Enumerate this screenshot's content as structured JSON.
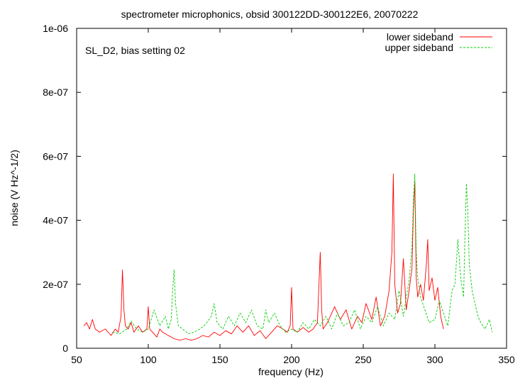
{
  "chart_data": {
    "type": "line",
    "title": "spectrometer microphonics, obsid 300122DD-300122E6, 20070222",
    "xlabel": "frequency (Hz)",
    "ylabel": "noise (V Hz^-1/2)",
    "annotation": "SL_D2, bias setting 02",
    "xlim": [
      50,
      350
    ],
    "ylim": [
      0,
      1e-06
    ],
    "x_ticks": [
      50,
      100,
      150,
      200,
      250,
      300,
      350
    ],
    "x_tick_labels": [
      "50",
      "100",
      "150",
      "200",
      "250",
      "300",
      "350"
    ],
    "y_ticks": [
      0,
      2e-07,
      4e-07,
      6e-07,
      8e-07,
      1e-06
    ],
    "y_tick_labels": [
      "0",
      "2e-07",
      "4e-07",
      "6e-07",
      "8e-07",
      "1e-06"
    ],
    "grid": false,
    "legend_position": "top-right",
    "series": [
      {
        "name": "lower sideband",
        "color": "#ff0000",
        "dash": "solid",
        "x": [
          55,
          57,
          59,
          61,
          63,
          66,
          70,
          74,
          77,
          79,
          81,
          82,
          83,
          84,
          86,
          88,
          90,
          93,
          96,
          99,
          100,
          101,
          103,
          106,
          108,
          110,
          114,
          118,
          122,
          126,
          130,
          134,
          138,
          142,
          146,
          150,
          154,
          158,
          162,
          166,
          170,
          174,
          178,
          182,
          186,
          190,
          194,
          197,
          199,
          200,
          201,
          204,
          208,
          212,
          215,
          218,
          220,
          221,
          222,
          225,
          230,
          234,
          238,
          242,
          246,
          249,
          252,
          256,
          259,
          262,
          265,
          268,
          270,
          271,
          272,
          274,
          276,
          278,
          280,
          282,
          284,
          285,
          286,
          287,
          288,
          290,
          292,
          294,
          295,
          296,
          298,
          300,
          302,
          304,
          306
        ],
        "y": [
          7e-08,
          8e-08,
          6e-08,
          9e-08,
          6e-08,
          5e-08,
          6e-08,
          4e-08,
          6e-08,
          5e-08,
          1e-07,
          2.45e-07,
          1.2e-07,
          7e-08,
          6e-08,
          8e-08,
          5e-08,
          7e-08,
          5e-08,
          6e-08,
          1.3e-07,
          6e-08,
          5e-08,
          3.5e-08,
          6e-08,
          5e-08,
          4e-08,
          3e-08,
          2.5e-08,
          3e-08,
          2.5e-08,
          3e-08,
          4e-08,
          3.5e-08,
          5e-08,
          4e-08,
          5.5e-08,
          4.5e-08,
          7e-08,
          5e-08,
          7e-08,
          4e-08,
          5.5e-08,
          3e-08,
          5e-08,
          7e-08,
          6e-08,
          5e-08,
          7e-08,
          1.9e-07,
          6e-08,
          5e-08,
          6.5e-08,
          5e-08,
          6e-08,
          8e-08,
          3e-07,
          1.2e-07,
          6e-08,
          8e-08,
          1.3e-07,
          9e-08,
          1.2e-07,
          6e-08,
          1e-07,
          8e-08,
          1.4e-07,
          9e-08,
          1.6e-07,
          7e-08,
          1e-07,
          1.8e-07,
          3e-07,
          5.45e-07,
          2e-07,
          1.1e-07,
          1.4e-07,
          2.8e-07,
          1.2e-07,
          1.8e-07,
          2.5e-07,
          4.3e-07,
          5.2e-07,
          2.2e-07,
          1.6e-07,
          2e-07,
          1.5e-07,
          2.6e-07,
          3.4e-07,
          1.8e-07,
          2.2e-07,
          1.5e-07,
          1.9e-07,
          1e-07,
          6e-08
        ]
      },
      {
        "name": "upper sideband",
        "color": "#00cc00",
        "dash": "dashed",
        "x": [
          75,
          80,
          85,
          88,
          92,
          96,
          100,
          104,
          108,
          112,
          114,
          116,
          117,
          118,
          119,
          121,
          124,
          128,
          132,
          136,
          140,
          144,
          146,
          148,
          152,
          156,
          160,
          164,
          168,
          172,
          176,
          180,
          182,
          184,
          188,
          192,
          196,
          200,
          204,
          208,
          212,
          216,
          220,
          224,
          228,
          232,
          236,
          240,
          244,
          248,
          252,
          256,
          260,
          264,
          268,
          272,
          275,
          278,
          280,
          282,
          284,
          285,
          286,
          287,
          288,
          290,
          293,
          296,
          300,
          303,
          306,
          309,
          312,
          314,
          316,
          318,
          320,
          321,
          322,
          323,
          324,
          326,
          328,
          330,
          332,
          335,
          338,
          340
        ],
        "y": [
          5e-08,
          4.5e-08,
          6e-08,
          8.5e-08,
          6e-08,
          5e-08,
          6e-08,
          1.2e-07,
          7e-08,
          1e-07,
          6e-08,
          9e-08,
          1.8e-07,
          2.45e-07,
          1.4e-07,
          7e-08,
          6e-08,
          4.5e-08,
          5e-08,
          6e-08,
          7.5e-08,
          1e-07,
          1.4e-07,
          8e-08,
          6e-08,
          1e-07,
          7e-08,
          1.1e-07,
          8e-08,
          1.2e-07,
          7e-08,
          6e-08,
          1.2e-07,
          8e-08,
          1.1e-07,
          7e-08,
          5e-08,
          6e-08,
          5e-08,
          8e-08,
          6e-08,
          9e-08,
          7e-08,
          1e-07,
          6e-08,
          1.1e-07,
          7e-08,
          8e-08,
          1.2e-07,
          6e-08,
          1e-07,
          8e-08,
          1.3e-07,
          7e-08,
          1.1e-07,
          9e-08,
          1.8e-07,
          1e-07,
          1.6e-07,
          2.1e-07,
          3.2e-07,
          4.6e-07,
          5.45e-07,
          3e-07,
          2.2e-07,
          1.6e-07,
          1.2e-07,
          8e-08,
          9e-08,
          1.5e-07,
          1.1e-07,
          7e-08,
          1.8e-07,
          2e-07,
          3.4e-07,
          2.2e-07,
          1.6e-07,
          3.5e-07,
          5.15e-07,
          4.2e-07,
          2.6e-07,
          1.8e-07,
          1.4e-07,
          1e-07,
          8e-08,
          6e-08,
          9e-08,
          5e-08
        ]
      }
    ]
  }
}
